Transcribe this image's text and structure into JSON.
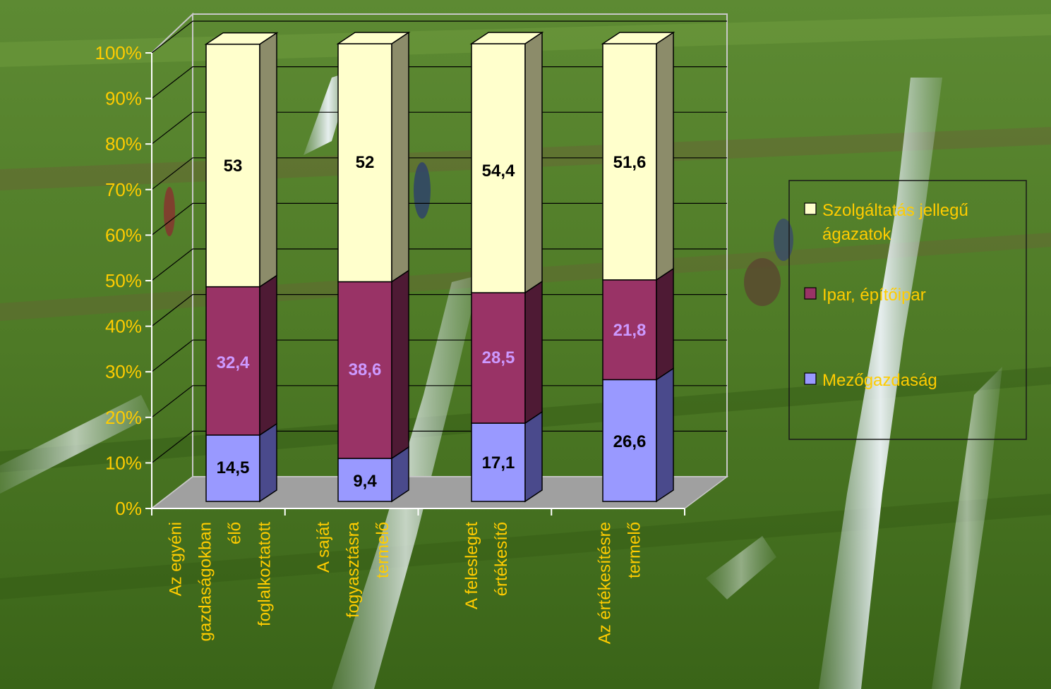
{
  "chart_data": {
    "type": "bar",
    "stacked": "percent",
    "view": "3d",
    "categories": [
      [
        "Az egyéni",
        "gazdaságokban",
        "élő",
        "foglalkoztatott"
      ],
      [
        "A saját",
        "fogyasztásra",
        "termelő"
      ],
      [
        "A felesleget",
        "értékesítő"
      ],
      [
        "Az értékesítésre",
        "termelő"
      ]
    ],
    "series": [
      {
        "name": "Mezőgazdaság",
        "values": [
          "14,5",
          "9,4",
          "17,1",
          "26,6"
        ],
        "color": "#9999ff",
        "side": "#4a4a8c",
        "label_color": "#000000"
      },
      {
        "name": "Ipar, építőipar",
        "values": [
          "32,4",
          "38,6",
          "28,5",
          "21,8"
        ],
        "color": "#993366",
        "side": "#4e1a34",
        "label_color": "#cc99ff"
      },
      {
        "name": "Szolgáltatás jellegű ágazatok",
        "values": [
          "53",
          "52",
          "54,4",
          "51,6"
        ],
        "color": "#ffffcc",
        "side": "#8c8c6a",
        "label_color": "#000000"
      }
    ],
    "y_ticks": [
      "0%",
      "10%",
      "20%",
      "30%",
      "40%",
      "50%",
      "60%",
      "70%",
      "80%",
      "90%",
      "100%"
    ],
    "ylim": [
      0,
      100
    ],
    "legend": {
      "position": "right",
      "order": [
        2,
        1,
        0
      ],
      "lines": [
        [
          "Szolgáltatás jellegű",
          "ágazatok"
        ],
        [
          "Ipar, építőipar"
        ],
        [
          "Mezőgazdaság"
        ]
      ]
    },
    "colors": {
      "axis_text": "#ffcc00",
      "category_text": "#ffcc00",
      "legend_text": "#ffcc00",
      "floor": "#a0a0a0",
      "gridline": "#000000"
    }
  }
}
